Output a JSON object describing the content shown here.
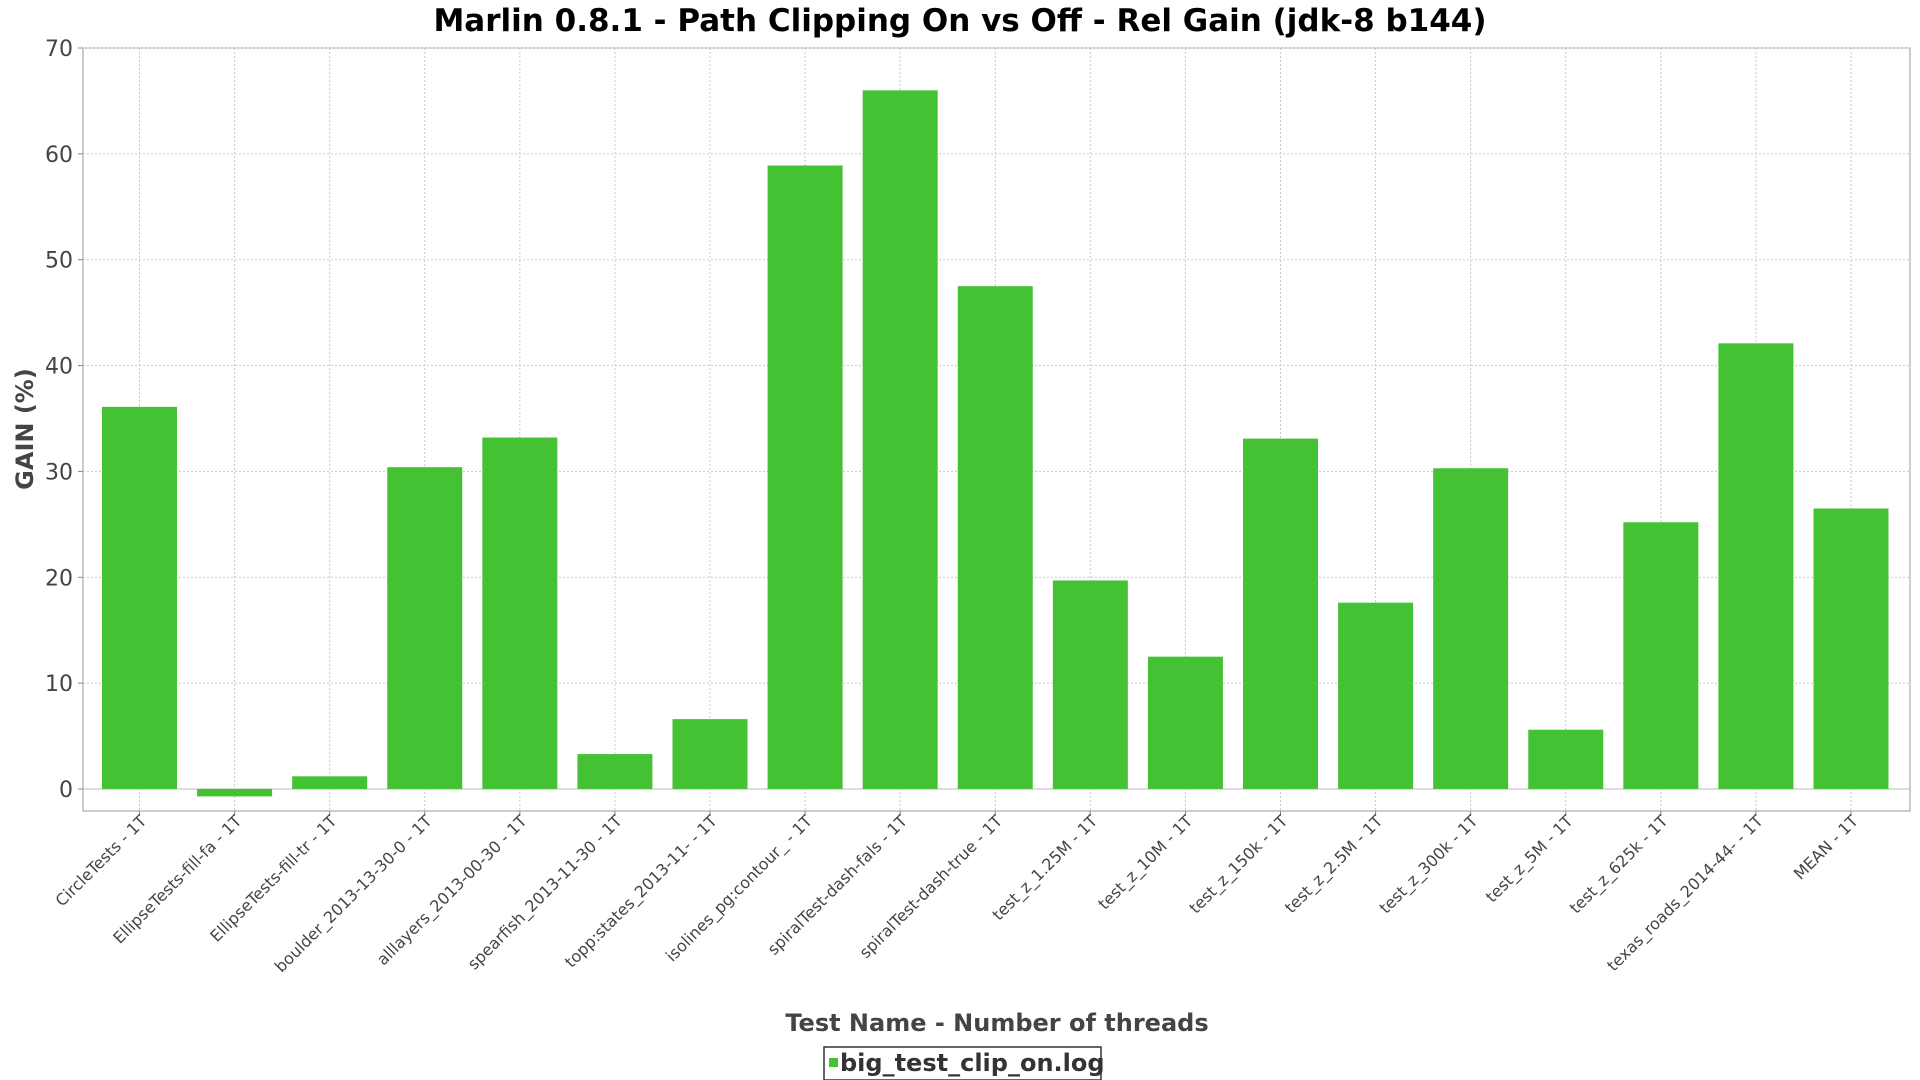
{
  "chart_data": {
    "type": "bar",
    "title": "Marlin 0.8.1 - Path Clipping On vs Off - Rel Gain (jdk-8 b144)",
    "xlabel": "Test Name - Number of threads",
    "ylabel": "GAIN (%)",
    "ylim": [
      -2,
      70
    ],
    "yticks": [
      0,
      10,
      20,
      30,
      40,
      50,
      60,
      70
    ],
    "grid": true,
    "legend_position": "bottom-center",
    "categories": [
      "CircleTests - 1T",
      "EllipseTests-fill-fa - 1T",
      "EllipseTests-fill-tr - 1T",
      "boulder_2013-13-30-0 - 1T",
      "alllayers_2013-00-30 - 1T",
      "spearfish_2013-11-30 - 1T",
      "topp:states_2013-11- - 1T",
      "isolines_pg:contour_ - 1T",
      "spiralTest-dash-fals - 1T",
      "spiralTest-dash-true - 1T",
      "test_z_1.25M - 1T",
      "test_z_10M - 1T",
      "test_z_150k - 1T",
      "test_z_2.5M - 1T",
      "test_z_300k - 1T",
      "test_z_5M - 1T",
      "test_z_625k - 1T",
      "texas_roads_2014-44- - 1T",
      "MEAN - 1T"
    ],
    "series": [
      {
        "name": "big_test_clip_on.log",
        "color": "#44c234",
        "values": [
          36.1,
          -0.7,
          1.2,
          30.4,
          33.2,
          3.3,
          6.6,
          58.9,
          66.0,
          47.5,
          19.7,
          12.5,
          33.1,
          17.6,
          30.3,
          5.6,
          25.2,
          42.1,
          26.5
        ]
      }
    ]
  }
}
